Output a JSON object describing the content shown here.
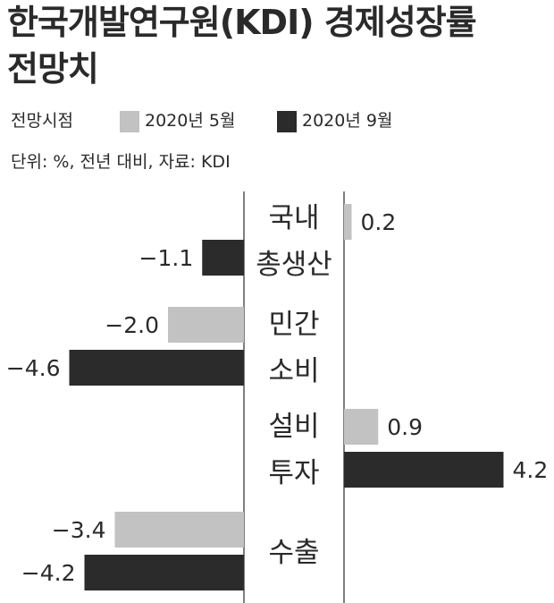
{
  "title_line1": "한국개발연구원(KDI) 경제성장률",
  "title_line2": "전망치",
  "legend": {
    "label": "전망시점",
    "items": [
      "2020년 5월",
      "2020년 9월"
    ]
  },
  "unit_note": "단위: %, 전년 대비, 자료: KDI",
  "colors": {
    "may": "#c2c2c2",
    "sep": "#2b2b2b",
    "text": "#2a2a2a"
  },
  "chart_data": {
    "type": "bar",
    "orientation": "horizontal",
    "categories": [
      [
        "국내",
        "총생산"
      ],
      [
        "민간",
        "소비"
      ],
      [
        "설비",
        "투자"
      ],
      [
        "수출"
      ]
    ],
    "series": [
      {
        "name": "2020년 5월",
        "values": [
          0.2,
          -2.0,
          0.9,
          -3.4
        ]
      },
      {
        "name": "2020년 9월",
        "values": [
          -1.1,
          -4.6,
          4.2,
          -4.2
        ]
      }
    ],
    "value_labels": [
      [
        "0.2",
        "−2.0",
        "0.9",
        "−3.4"
      ],
      [
        "−1.1",
        "−4.6",
        "4.2",
        "−4.2"
      ]
    ],
    "grid": false,
    "legend_position": "top-left"
  }
}
